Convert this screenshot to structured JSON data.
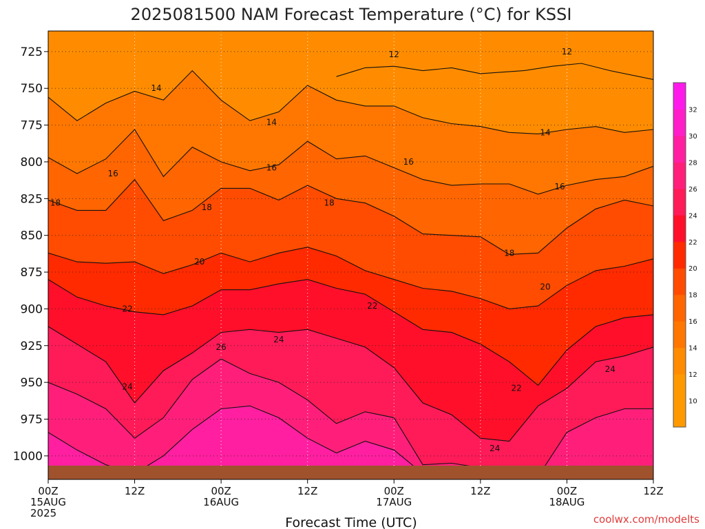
{
  "chart_data": {
    "type": "heatmap",
    "title": "2025081500 NAM Forecast Temperature (°C) for KSSI",
    "xlabel": "Forecast Time (UTC)",
    "ylabel": "",
    "y_axis": {
      "unit": "hPa",
      "ticks": [
        725,
        750,
        775,
        800,
        825,
        850,
        875,
        900,
        925,
        950,
        975,
        1000
      ],
      "range": [
        711,
        1016
      ],
      "direction": "pressure increasing downward"
    },
    "x_axis": {
      "unit": "forecast hour",
      "range": [
        0,
        84
      ],
      "ticks": [
        {
          "hour": 0,
          "lines": [
            "00Z",
            "15AUG",
            "2025"
          ]
        },
        {
          "hour": 12,
          "lines": [
            "12Z"
          ]
        },
        {
          "hour": 24,
          "lines": [
            "00Z",
            "16AUG"
          ]
        },
        {
          "hour": 36,
          "lines": [
            "12Z"
          ]
        },
        {
          "hour": 48,
          "lines": [
            "00Z",
            "17AUG"
          ]
        },
        {
          "hour": 60,
          "lines": [
            "12Z"
          ]
        },
        {
          "hour": 72,
          "lines": [
            "00Z",
            "18AUG"
          ]
        },
        {
          "hour": 84,
          "lines": [
            "12Z"
          ]
        }
      ]
    },
    "grid": true,
    "colorbar": {
      "position": "right",
      "levels": [
        10,
        12,
        14,
        16,
        18,
        20,
        22,
        24,
        26,
        28,
        30,
        32
      ],
      "colors": [
        "#ff9900",
        "#ff8c00",
        "#ff7700",
        "#ff6500",
        "#ff4c00",
        "#ff2a00",
        "#ff0f2a",
        "#ff1a58",
        "#ff1f7b",
        "#ff1fa0",
        "#ff1ec8",
        "#ff1aec"
      ]
    },
    "surface_color": "#a0522d",
    "series": [
      {
        "contour": 12,
        "values": [
          [
            40,
            742
          ],
          [
            44,
            736
          ],
          [
            48,
            735
          ],
          [
            52,
            738
          ],
          [
            56,
            736
          ],
          [
            60,
            740
          ],
          [
            66,
            738
          ],
          [
            70,
            735
          ],
          [
            74,
            733
          ],
          [
            78,
            738
          ],
          [
            84,
            744
          ]
        ],
        "labels": [
          [
            48,
            727
          ],
          [
            72,
            725
          ]
        ]
      },
      {
        "contour": 14,
        "values": [
          [
            0,
            756
          ],
          [
            4,
            772
          ],
          [
            8,
            760
          ],
          [
            12,
            752
          ],
          [
            16,
            758
          ],
          [
            20,
            738
          ],
          [
            24,
            758
          ],
          [
            28,
            772
          ],
          [
            32,
            766
          ],
          [
            36,
            748
          ],
          [
            40,
            758
          ],
          [
            44,
            762
          ],
          [
            48,
            762
          ],
          [
            52,
            770
          ],
          [
            56,
            774
          ],
          [
            60,
            776
          ],
          [
            64,
            780
          ],
          [
            68,
            781
          ],
          [
            72,
            778
          ],
          [
            76,
            776
          ],
          [
            80,
            780
          ],
          [
            84,
            778
          ]
        ],
        "labels": [
          [
            15,
            750
          ],
          [
            31,
            773
          ],
          [
            69,
            780
          ]
        ]
      },
      {
        "contour": 16,
        "values": [
          [
            0,
            797
          ],
          [
            4,
            808
          ],
          [
            8,
            798
          ],
          [
            12,
            778
          ],
          [
            16,
            810
          ],
          [
            20,
            790
          ],
          [
            24,
            800
          ],
          [
            28,
            806
          ],
          [
            32,
            802
          ],
          [
            36,
            786
          ],
          [
            40,
            798
          ],
          [
            44,
            796
          ],
          [
            48,
            804
          ],
          [
            52,
            812
          ],
          [
            56,
            816
          ],
          [
            60,
            815
          ],
          [
            64,
            815
          ],
          [
            68,
            822
          ],
          [
            72,
            816
          ],
          [
            76,
            812
          ],
          [
            80,
            810
          ],
          [
            84,
            803
          ]
        ],
        "labels": [
          [
            9,
            808
          ],
          [
            31,
            804
          ],
          [
            50,
            800
          ],
          [
            71,
            817
          ]
        ]
      },
      {
        "contour": 18,
        "values": [
          [
            0,
            826
          ],
          [
            4,
            833
          ],
          [
            8,
            833
          ],
          [
            12,
            812
          ],
          [
            16,
            840
          ],
          [
            20,
            833
          ],
          [
            24,
            818
          ],
          [
            28,
            818
          ],
          [
            32,
            826
          ],
          [
            36,
            816
          ],
          [
            40,
            825
          ],
          [
            44,
            828
          ],
          [
            48,
            837
          ],
          [
            52,
            849
          ],
          [
            56,
            850
          ],
          [
            60,
            851
          ],
          [
            64,
            863
          ],
          [
            68,
            862
          ],
          [
            72,
            845
          ],
          [
            76,
            832
          ],
          [
            80,
            826
          ],
          [
            84,
            830
          ]
        ],
        "labels": [
          [
            1,
            828
          ],
          [
            22,
            831
          ],
          [
            39,
            828
          ],
          [
            64,
            862
          ]
        ]
      },
      {
        "contour": 20,
        "values": [
          [
            0,
            862
          ],
          [
            4,
            868
          ],
          [
            8,
            869
          ],
          [
            12,
            868
          ],
          [
            16,
            876
          ],
          [
            20,
            870
          ],
          [
            24,
            862
          ],
          [
            28,
            868
          ],
          [
            32,
            862
          ],
          [
            36,
            858
          ],
          [
            40,
            864
          ],
          [
            44,
            874
          ],
          [
            48,
            880
          ],
          [
            52,
            886
          ],
          [
            56,
            888
          ],
          [
            60,
            893
          ],
          [
            64,
            900
          ],
          [
            68,
            898
          ],
          [
            72,
            884
          ],
          [
            76,
            874
          ],
          [
            80,
            871
          ],
          [
            84,
            866
          ]
        ],
        "labels": [
          [
            21,
            868
          ],
          [
            69,
            885
          ]
        ]
      },
      {
        "contour": 22,
        "values": [
          [
            0,
            880
          ],
          [
            4,
            892
          ],
          [
            8,
            898
          ],
          [
            12,
            902
          ],
          [
            16,
            904
          ],
          [
            20,
            898
          ],
          [
            24,
            887
          ],
          [
            28,
            887
          ],
          [
            32,
            883
          ],
          [
            36,
            880
          ],
          [
            40,
            886
          ],
          [
            44,
            890
          ],
          [
            48,
            902
          ],
          [
            52,
            914
          ],
          [
            56,
            916
          ],
          [
            60,
            924
          ],
          [
            64,
            936
          ],
          [
            68,
            952
          ],
          [
            72,
            928
          ],
          [
            76,
            912
          ],
          [
            80,
            906
          ],
          [
            84,
            904
          ]
        ],
        "labels": [
          [
            11,
            900
          ],
          [
            45,
            898
          ],
          [
            65,
            954
          ]
        ]
      },
      {
        "contour": 24,
        "values": [
          [
            0,
            912
          ],
          [
            4,
            924
          ],
          [
            8,
            936
          ],
          [
            12,
            964
          ],
          [
            16,
            942
          ],
          [
            20,
            930
          ],
          [
            24,
            916
          ],
          [
            28,
            914
          ],
          [
            32,
            916
          ],
          [
            36,
            914
          ],
          [
            40,
            920
          ],
          [
            44,
            926
          ],
          [
            48,
            940
          ],
          [
            52,
            964
          ],
          [
            56,
            972
          ],
          [
            60,
            988
          ],
          [
            64,
            990
          ],
          [
            68,
            966
          ],
          [
            72,
            954
          ],
          [
            76,
            936
          ],
          [
            80,
            932
          ],
          [
            84,
            926
          ]
        ],
        "labels": [
          [
            11,
            953
          ],
          [
            32,
            921
          ],
          [
            62,
            995
          ],
          [
            78,
            941
          ]
        ]
      },
      {
        "contour": 26,
        "values": [
          [
            0,
            950
          ],
          [
            4,
            958
          ],
          [
            8,
            968
          ],
          [
            12,
            988
          ],
          [
            16,
            974
          ],
          [
            20,
            948
          ],
          [
            24,
            934
          ],
          [
            28,
            944
          ],
          [
            32,
            950
          ],
          [
            36,
            962
          ],
          [
            40,
            978
          ],
          [
            44,
            970
          ],
          [
            48,
            974
          ],
          [
            52,
            1006
          ],
          [
            56,
            1005
          ],
          [
            60,
            1008
          ],
          [
            64,
            1012
          ],
          [
            68,
            1014
          ],
          [
            72,
            984
          ],
          [
            76,
            974
          ],
          [
            80,
            968
          ],
          [
            84,
            968
          ]
        ],
        "labels": [
          [
            24,
            926
          ]
        ]
      },
      {
        "contour": 28,
        "values": [
          [
            0,
            984
          ],
          [
            4,
            996
          ],
          [
            8,
            1006
          ],
          [
            12,
            1012
          ],
          [
            16,
            1000
          ],
          [
            20,
            982
          ],
          [
            24,
            968
          ],
          [
            28,
            966
          ],
          [
            32,
            974
          ],
          [
            36,
            988
          ],
          [
            40,
            998
          ],
          [
            44,
            990
          ],
          [
            48,
            996
          ],
          [
            52,
            1012
          ],
          [
            84,
            1012
          ]
        ],
        "labels": []
      }
    ]
  },
  "credit": "coolwx.com/modelts"
}
